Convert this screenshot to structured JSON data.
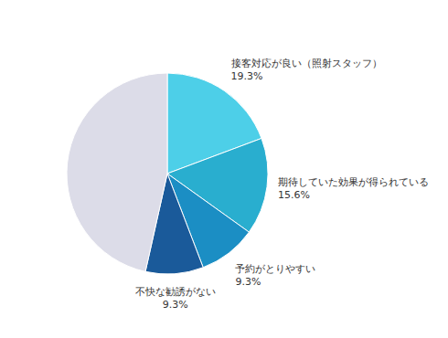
{
  "chart_data": {
    "type": "pie",
    "categories": [
      "接客対応が良い（照射スタッフ）",
      "期待していた効果が得られている",
      "予約がとりやすい",
      "不快な勧誘がない",
      null
    ],
    "values": [
      19.3,
      15.6,
      9.3,
      9.3,
      46.5
    ],
    "value_labels": [
      "19.3%",
      "15.6%",
      "9.3%",
      "9.3%",
      null
    ],
    "colors": [
      "#4DCFE8",
      "#29AECF",
      "#1B8EC4",
      "#1A5A9A",
      "#DCDCE8"
    ]
  }
}
